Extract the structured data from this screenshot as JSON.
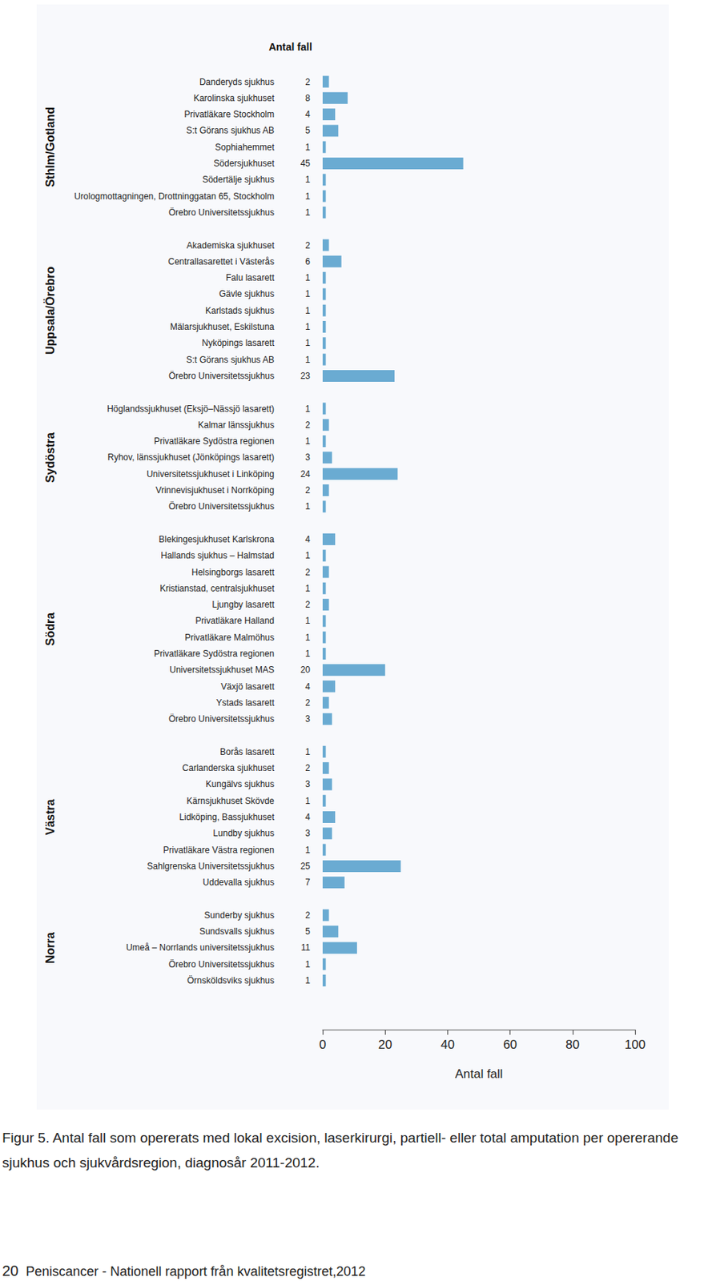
{
  "header": "Antal fall",
  "caption": "Figur 5. Antal fall som opererats med lokal excision, laserkirurgi, partiell- eller total amputation per opererande sjukhus och sjukvårdsregion, diagnosår 2011-2012.",
  "footer": {
    "page": "20",
    "text": "Peniscancer - Nationell rapport från kvalitetsregistret,2012"
  },
  "chart_data": [
    {
      "type": "bar",
      "orientation": "horizontal",
      "title": "Sthlm/Gotland",
      "color": "#6aabd2",
      "data_labels": true,
      "tick_labels": "y",
      "xlim": [
        0,
        100
      ],
      "categories": [
        "Danderyds sjukhus",
        "Karolinska sjukhuset",
        "Privatläkare Stockholm",
        "S:t Görans sjukhus AB",
        "Sophiahemmet",
        "Södersjukhuset",
        "Södertälje sjukhus",
        "Urologmottagningen, Drottninggatan 65, Stockholm",
        "Örebro Universitetssjukhus"
      ],
      "values": [
        2,
        8,
        4,
        5,
        1,
        45,
        1,
        1,
        1
      ]
    },
    {
      "type": "bar",
      "orientation": "horizontal",
      "title": "Uppsala/Örebro",
      "color": "#6aabd2",
      "data_labels": true,
      "tick_labels": "y",
      "xlim": [
        0,
        100
      ],
      "categories": [
        "Akademiska sjukhuset",
        "Centrallasarettet i Västerås",
        "Falu lasarett",
        "Gävle sjukhus",
        "Karlstads sjukhus",
        "Mälarsjukhuset, Eskilstuna",
        "Nyköpings lasarett",
        "S:t Görans sjukhus AB",
        "Örebro Universitetssjukhus"
      ],
      "values": [
        2,
        6,
        1,
        1,
        1,
        1,
        1,
        1,
        23
      ]
    },
    {
      "type": "bar",
      "orientation": "horizontal",
      "title": "Sydöstra",
      "color": "#6aabd2",
      "data_labels": true,
      "tick_labels": "y",
      "xlim": [
        0,
        100
      ],
      "categories": [
        "Höglandssjukhuset (Eksjö–Nässjö lasarett)",
        "Kalmar länssjukhus",
        "Privatläkare Sydöstra regionen",
        "Ryhov, länssjukhuset (Jönköpings lasarett)",
        "Universitetssjukhuset i Linköping",
        "Vrinnevisjukhuset i Norrköping",
        "Örebro Universitetssjukhus"
      ],
      "values": [
        1,
        2,
        1,
        3,
        24,
        2,
        1
      ]
    },
    {
      "type": "bar",
      "orientation": "horizontal",
      "title": "Södra",
      "color": "#6aabd2",
      "data_labels": true,
      "tick_labels": "y",
      "xlim": [
        0,
        100
      ],
      "categories": [
        "Blekingesjukhuset Karlskrona",
        "Hallands sjukhus – Halmstad",
        "Helsingborgs lasarett",
        "Kristianstad, centralsjukhuset",
        "Ljungby lasarett",
        "Privatläkare Halland",
        "Privatläkare Malmöhus",
        "Privatläkare Sydöstra regionen",
        "Universitetssjukhuset MAS",
        "Växjö lasarett",
        "Ystads lasarett",
        "Örebro Universitetssjukhus"
      ],
      "values": [
        4,
        1,
        2,
        1,
        2,
        1,
        1,
        1,
        20,
        4,
        2,
        3
      ]
    },
    {
      "type": "bar",
      "orientation": "horizontal",
      "title": "Västra",
      "color": "#6aabd2",
      "data_labels": true,
      "tick_labels": "y",
      "xlim": [
        0,
        100
      ],
      "categories": [
        "Borås lasarett",
        "Carlanderska sjukhuset",
        "Kungälvs sjukhus",
        "Kärnsjukhuset Skövde",
        "Lidköping, Bassjukhuset",
        "Lundby sjukhus",
        "Privatläkare Västra regionen",
        "Sahlgrenska Universitetssjukhus",
        "Uddevalla sjukhus"
      ],
      "values": [
        1,
        2,
        3,
        1,
        4,
        3,
        1,
        25,
        7
      ]
    },
    {
      "type": "bar",
      "orientation": "horizontal",
      "title": "Norra",
      "color": "#6aabd2",
      "data_labels": true,
      "tick_labels": true,
      "xlim": [
        0,
        100
      ],
      "xticks": [
        0,
        20,
        40,
        60,
        80,
        100
      ],
      "xlabel": "Antal fall",
      "categories": [
        "Sunderby sjukhus",
        "Sundsvalls sjukhus",
        "Umeå – Norrlands universitetssjukhus",
        "Örebro Universitetssjukhus",
        "Örnsköldsviks sjukhus"
      ],
      "values": [
        2,
        5,
        11,
        1,
        1
      ]
    }
  ]
}
